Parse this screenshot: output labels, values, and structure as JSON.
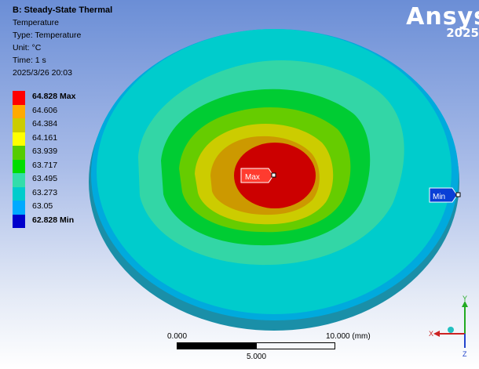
{
  "info": {
    "title": "B: Steady-State Thermal",
    "result_name": "Temperature",
    "type_line": "Type: Temperature",
    "unit_line": "Unit: °C",
    "time_line": "Time: 1 s",
    "date_line": "2025/3/26 20:03"
  },
  "legend": {
    "labels": [
      "64.828 Max",
      "64.606",
      "64.384",
      "64.161",
      "63.939",
      "63.717",
      "63.495",
      "63.273",
      "63.05",
      "62.828 Min"
    ],
    "colors": [
      "#ff0000",
      "#ffaa00",
      "#cccc00",
      "#ffff00",
      "#55cc00",
      "#00dd00",
      "#33ddaa",
      "#00cccc",
      "#00aaff",
      "#0000cc"
    ]
  },
  "logo": {
    "brand": "Ansys",
    "year": "2025"
  },
  "probes": {
    "max_label": "Max",
    "min_label": "Min"
  },
  "scale": {
    "left": "0.000",
    "right": "10.000 (mm)",
    "mid": "5.000"
  },
  "triad": {
    "x": "X",
    "y": "Y",
    "z": "Z"
  },
  "contour_colors": {
    "rim": "#00aadd",
    "edge_shadow": "#1a8fa8",
    "outer": "#00cccc",
    "band1": "#33d6a6",
    "band2": "#00cc33",
    "band3": "#66cc00",
    "band4": "#cccc00",
    "band5": "#cc9900",
    "core": "#cc0000"
  }
}
